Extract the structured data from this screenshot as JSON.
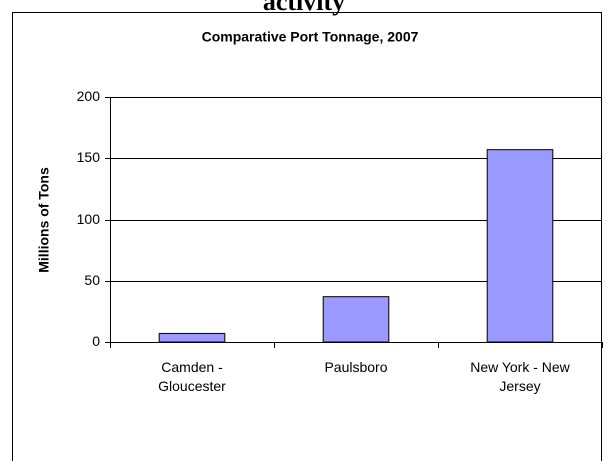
{
  "caption": "activity",
  "chart_data": {
    "type": "bar",
    "title": "Comparative Port Tonnage, 2007",
    "y_label": "Millions of Tons",
    "categories": [
      "Camden - Gloucester",
      "Paulsboro",
      "New York - New Jersey"
    ],
    "values": [
      7,
      37,
      157
    ],
    "color": "#9999ff",
    "ylim": [
      0,
      200
    ],
    "yticks": [
      0,
      50,
      100,
      150,
      200
    ],
    "grid": true
  }
}
